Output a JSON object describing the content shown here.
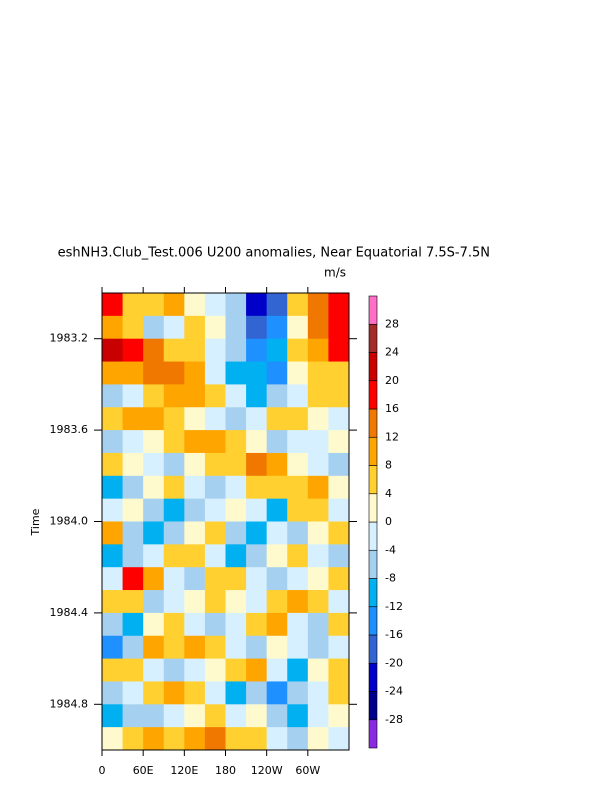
{
  "chart_data": {
    "type": "heatmap",
    "title": "eshNH3.Club_Test.006 U200 anomalies, Near Equatorial 7.5S-7.5N",
    "units": "m/s",
    "ylabel": "Time",
    "xlim": [
      0,
      360
    ],
    "xticks": [
      0,
      {
        "value": 60,
        "label": "60E"
      },
      {
        "value": 120,
        "label": "120E"
      },
      180,
      {
        "value": 240,
        "label": "120W"
      },
      {
        "value": 300,
        "label": "60W"
      }
    ],
    "ylim": [
      1983.0,
      1985.0
    ],
    "yticks": [
      1983.2,
      1983.6,
      {
        "value": 1984,
        "label": "1984.0"
      },
      1984.4,
      1984.8
    ],
    "levels": [
      -28,
      -24,
      -20,
      -16,
      -12,
      -8,
      -4,
      0,
      4,
      8,
      12,
      16,
      20,
      24,
      28
    ],
    "colors": [
      "#8a2be2",
      "#00008b",
      "#0000c8",
      "#3264d2",
      "#1e90ff",
      "#00b0f0",
      "#a6d0f0",
      "#d6f0ff",
      "#fffacd",
      "#ffd030",
      "#ffa500",
      "#f07800",
      "#ff0000",
      "#c80000",
      "#a52a2a",
      "#ff6ec7"
    ],
    "x": [
      15,
      45,
      75,
      105,
      135,
      165,
      195,
      225,
      255,
      285,
      315,
      345
    ],
    "y": [
      1983.05,
      1983.15,
      1983.25,
      1983.35,
      1983.45,
      1983.55,
      1983.65,
      1983.75,
      1983.85,
      1983.95,
      1984.05,
      1984.15,
      1984.25,
      1984.35,
      1984.45,
      1984.55,
      1984.65,
      1984.75,
      1984.85,
      1984.95
    ],
    "values": [
      [
        18,
        6,
        4,
        8,
        2,
        -4,
        -8,
        -22,
        -18,
        6,
        14,
        18
      ],
      [
        10,
        4,
        -6,
        -4,
        6,
        2,
        -6,
        -18,
        -14,
        2,
        12,
        16
      ],
      [
        20,
        18,
        12,
        6,
        4,
        -2,
        -8,
        -14,
        -12,
        4,
        8,
        16
      ],
      [
        8,
        10,
        14,
        12,
        8,
        -4,
        -10,
        -12,
        -14,
        2,
        6,
        4
      ],
      [
        -6,
        -2,
        6,
        8,
        10,
        4,
        -4,
        -10,
        -8,
        -2,
        4,
        6
      ],
      [
        6,
        10,
        8,
        4,
        2,
        -2,
        -6,
        -4,
        4,
        6,
        2,
        -4
      ],
      [
        -8,
        -4,
        2,
        6,
        10,
        8,
        4,
        2,
        -6,
        -4,
        -2,
        2
      ],
      [
        4,
        2,
        -4,
        -6,
        2,
        4,
        6,
        14,
        8,
        2,
        -4,
        -6
      ],
      [
        -10,
        -6,
        2,
        4,
        -4,
        -8,
        -2,
        4,
        6,
        4,
        8,
        2
      ],
      [
        -4,
        2,
        -8,
        -10,
        -6,
        -2,
        2,
        -4,
        -10,
        6,
        4,
        -2
      ],
      [
        8,
        -6,
        -12,
        -8,
        2,
        4,
        -6,
        -10,
        -4,
        -8,
        2,
        4
      ],
      [
        -12,
        -8,
        -4,
        6,
        4,
        -2,
        -12,
        -8,
        2,
        6,
        -4,
        -6
      ],
      [
        -4,
        18,
        8,
        -2,
        -6,
        4,
        6,
        -2,
        -6,
        -4,
        2,
        4
      ],
      [
        4,
        6,
        -8,
        -4,
        2,
        6,
        2,
        -4,
        4,
        8,
        6,
        -2
      ],
      [
        -8,
        -10,
        2,
        4,
        -4,
        -8,
        -2,
        6,
        10,
        -2,
        -6,
        4
      ],
      [
        -14,
        -6,
        8,
        6,
        10,
        4,
        -4,
        -6,
        2,
        -4,
        -8,
        -2
      ],
      [
        6,
        4,
        -2,
        -6,
        -2,
        2,
        6,
        8,
        -4,
        -10,
        2,
        6
      ],
      [
        -6,
        -2,
        4,
        8,
        6,
        -4,
        -10,
        -6,
        -14,
        -6,
        -2,
        4
      ],
      [
        -10,
        -8,
        -6,
        -2,
        2,
        4,
        -2,
        2,
        -8,
        -12,
        -4,
        2
      ],
      [
        2,
        4,
        8,
        6,
        10,
        12,
        6,
        4,
        -4,
        -6,
        2,
        -2
      ]
    ]
  }
}
